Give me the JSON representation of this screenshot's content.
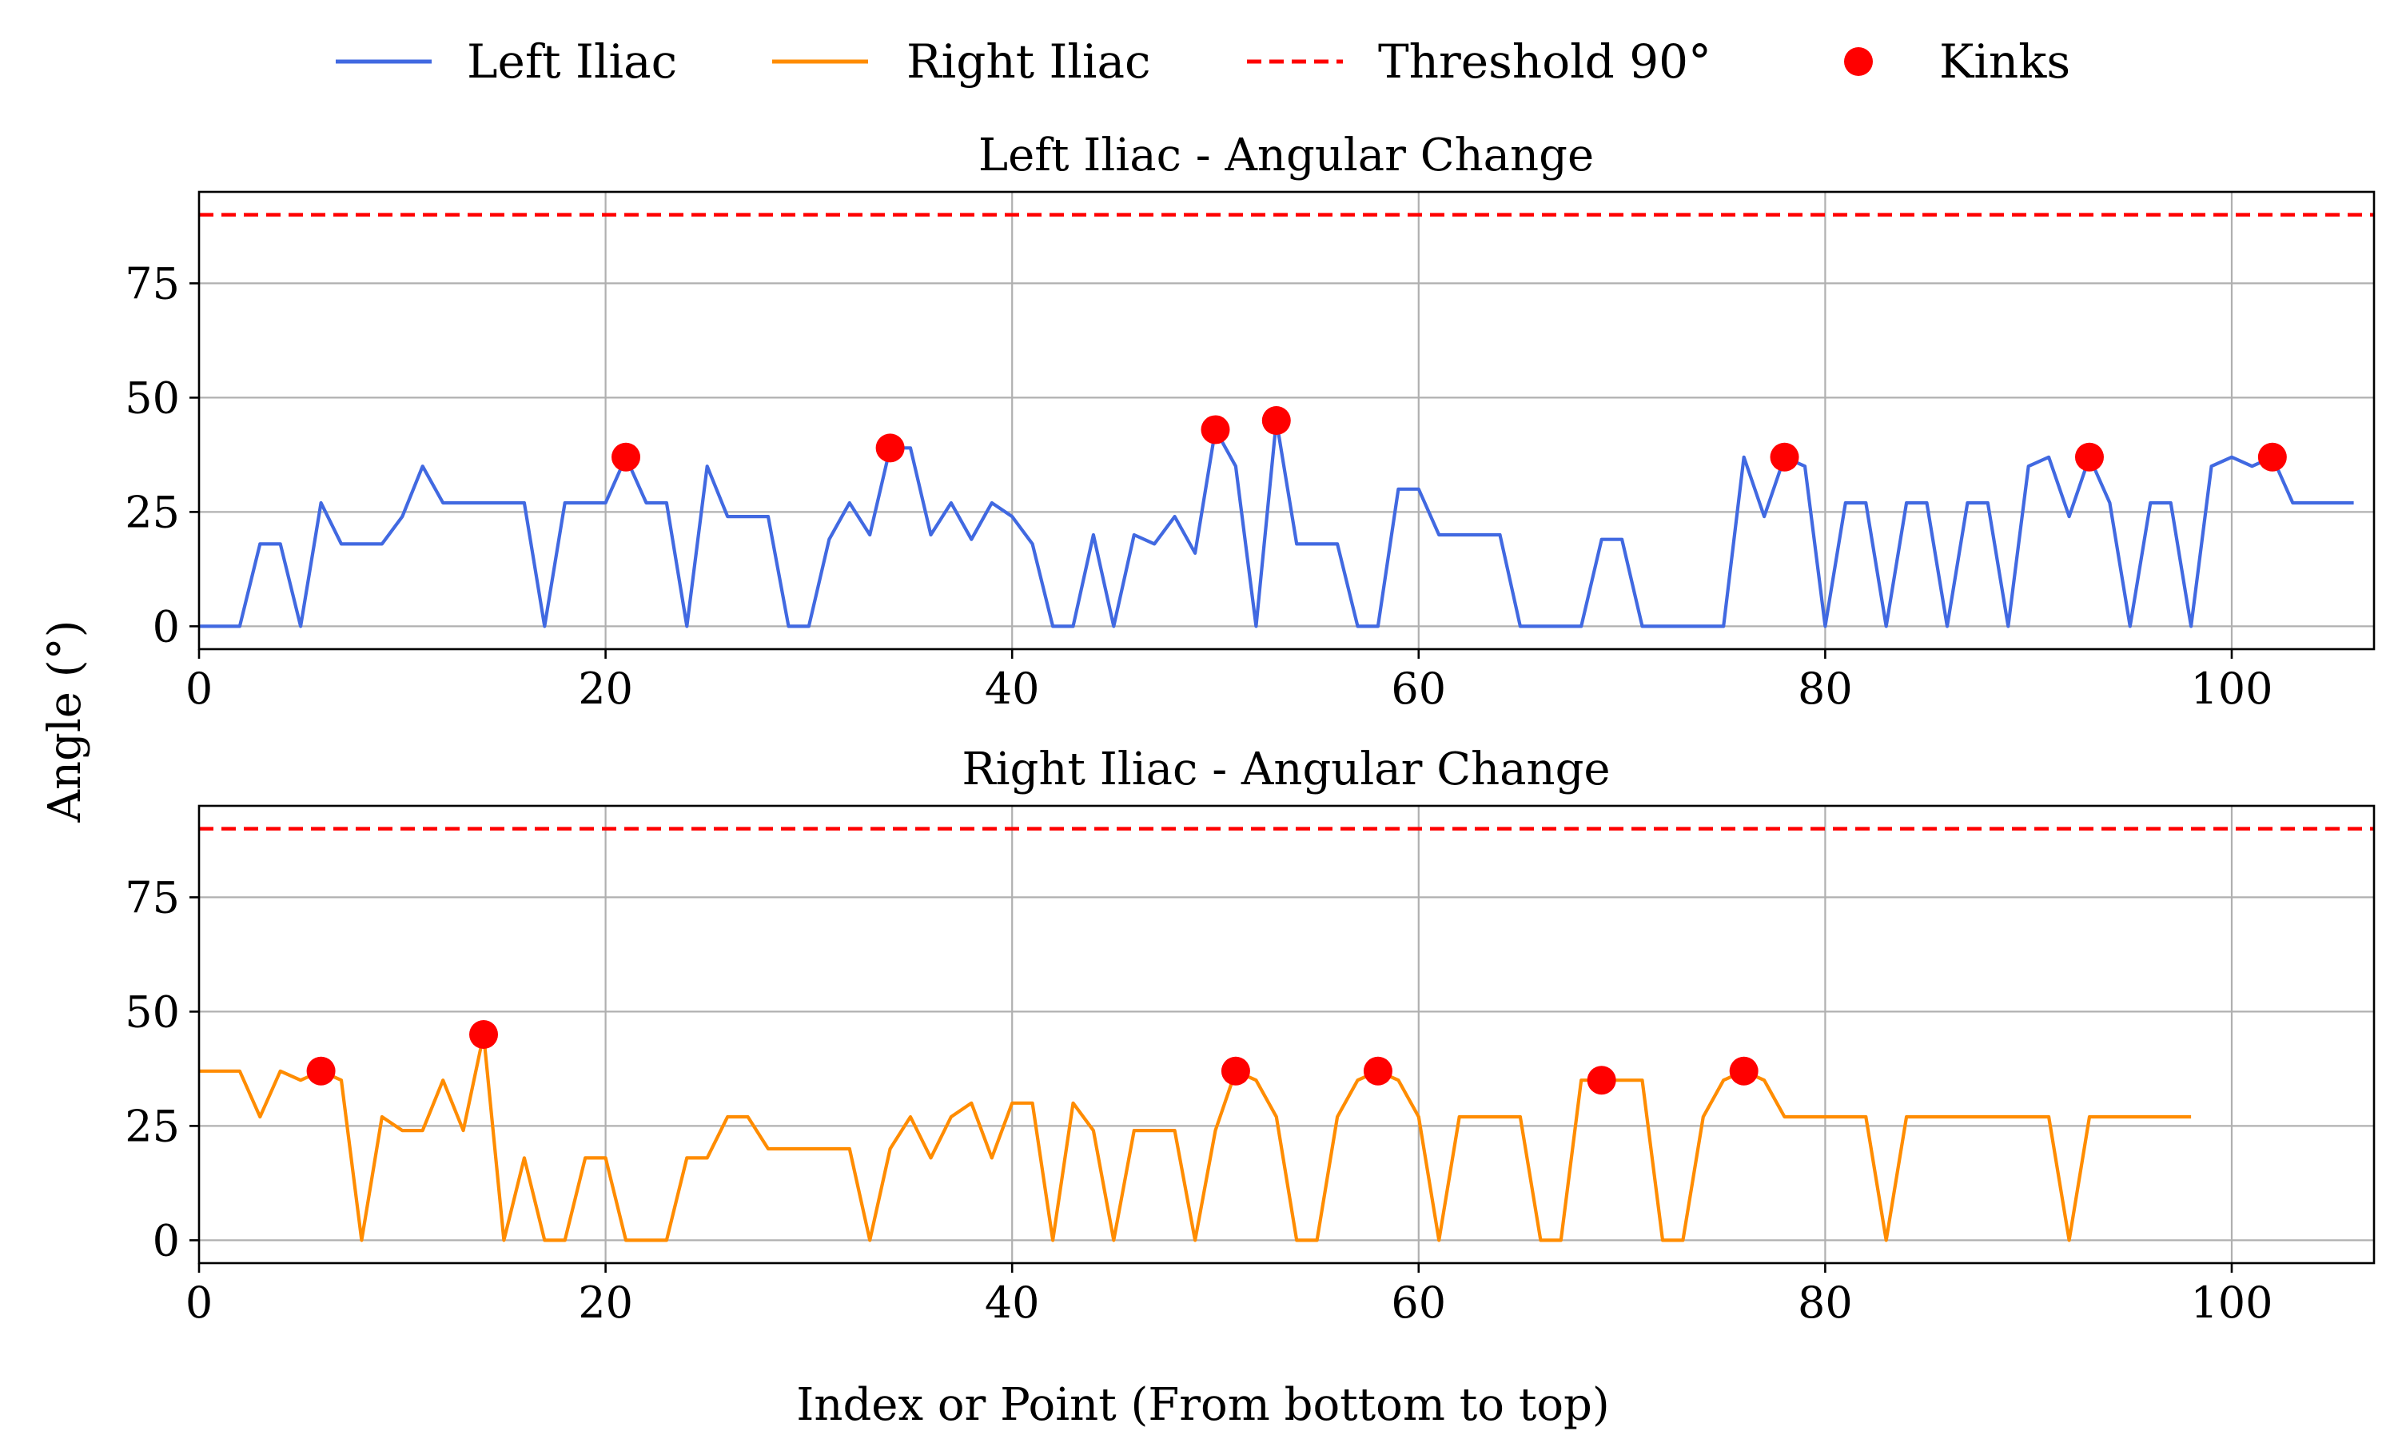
{
  "legend": {
    "items": [
      {
        "label": "Left Iliac",
        "kind": "line",
        "color": "#4169e1"
      },
      {
        "label": "Right Iliac",
        "kind": "line",
        "color": "#ff8c00"
      },
      {
        "label": "Threshold 90°",
        "kind": "dashed",
        "color": "#ff0000"
      },
      {
        "label": "Kinks",
        "kind": "marker",
        "color": "#ff0000"
      }
    ]
  },
  "ylabel": "Angle (°)",
  "xlabel": "Index or Point (From bottom to top)",
  "chart_data": [
    {
      "type": "line",
      "title": "Left Iliac - Angular Change",
      "xlim": [
        0,
        107
      ],
      "ylim": [
        -5,
        95
      ],
      "xticks": [
        0,
        20,
        40,
        60,
        80,
        100
      ],
      "yticks": [
        0,
        25,
        50,
        75
      ],
      "grid": true,
      "threshold": 90,
      "series": [
        {
          "name": "Left Iliac",
          "color": "#4169e1",
          "values": [
            0,
            0,
            0,
            18,
            18,
            0,
            27,
            18,
            18,
            18,
            24,
            35,
            27,
            27,
            27,
            27,
            27,
            0,
            27,
            27,
            27,
            37,
            27,
            27,
            0,
            35,
            24,
            24,
            24,
            0,
            0,
            19,
            27,
            20,
            39,
            39,
            20,
            27,
            19,
            27,
            24,
            18,
            0,
            0,
            20,
            0,
            20,
            18,
            24,
            16,
            43,
            35,
            0,
            45,
            18,
            18,
            18,
            0,
            0,
            30,
            30,
            20,
            20,
            20,
            20,
            0,
            0,
            0,
            0,
            19,
            19,
            0,
            0,
            0,
            0,
            0,
            37,
            24,
            37,
            35,
            0,
            27,
            27,
            0,
            27,
            27,
            0,
            27,
            27,
            0,
            35,
            37,
            24,
            37,
            27,
            0,
            27,
            27,
            0,
            35,
            37,
            35,
            37,
            27,
            27,
            27,
            27
          ]
        },
        {
          "name": "Kinks",
          "color": "#ff0000",
          "points": [
            [
              21,
              37
            ],
            [
              34,
              39
            ],
            [
              50,
              43
            ],
            [
              53,
              45
            ],
            [
              78,
              37
            ],
            [
              93,
              37
            ],
            [
              102,
              37
            ]
          ]
        }
      ]
    },
    {
      "type": "line",
      "title": "Right Iliac - Angular Change",
      "xlim": [
        0,
        107
      ],
      "ylim": [
        -5,
        95
      ],
      "xticks": [
        0,
        20,
        40,
        60,
        80,
        100
      ],
      "yticks": [
        0,
        25,
        50,
        75
      ],
      "grid": true,
      "threshold": 90,
      "series": [
        {
          "name": "Right Iliac",
          "color": "#ff8c00",
          "values": [
            37,
            37,
            37,
            27,
            37,
            35,
            37,
            35,
            0,
            27,
            24,
            24,
            35,
            24,
            45,
            0,
            18,
            0,
            0,
            18,
            18,
            0,
            0,
            0,
            18,
            18,
            27,
            27,
            20,
            20,
            20,
            20,
            20,
            0,
            20,
            27,
            18,
            27,
            30,
            18,
            30,
            30,
            0,
            30,
            24,
            0,
            24,
            24,
            24,
            0,
            24,
            37,
            35,
            27,
            0,
            0,
            27,
            35,
            37,
            35,
            27,
            0,
            27,
            27,
            27,
            27,
            0,
            0,
            35,
            35,
            35,
            35,
            0,
            0,
            27,
            35,
            37,
            35,
            27,
            27,
            27,
            27,
            27,
            0,
            27,
            27,
            27,
            27,
            27,
            27,
            27,
            27,
            0,
            27,
            27,
            27,
            27,
            27,
            27
          ]
        },
        {
          "name": "Kinks",
          "color": "#ff0000",
          "points": [
            [
              6,
              37
            ],
            [
              14,
              45
            ],
            [
              51,
              37
            ],
            [
              58,
              37
            ],
            [
              69,
              35
            ],
            [
              76,
              37
            ]
          ]
        }
      ]
    }
  ]
}
